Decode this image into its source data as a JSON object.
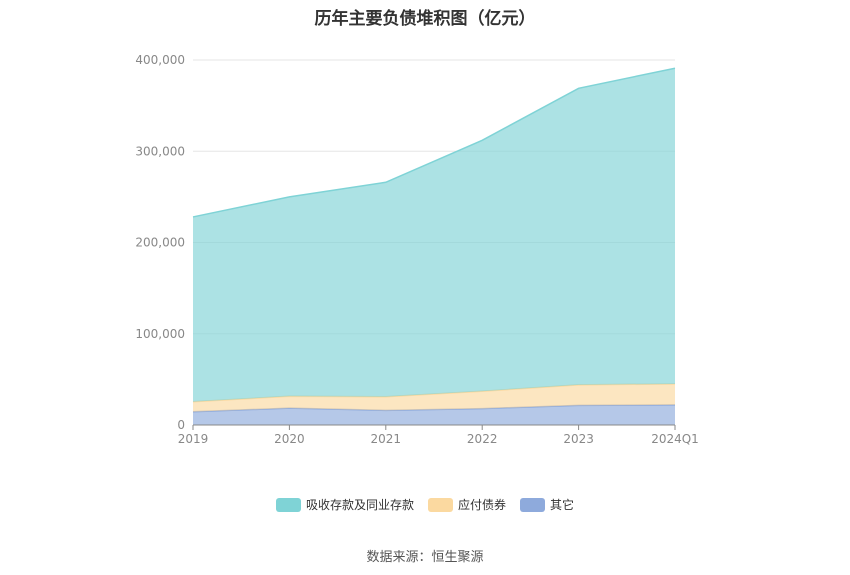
{
  "chart_data": {
    "type": "area",
    "stacked": true,
    "title": "历年主要负债堆积图（亿元）",
    "categories": [
      "2019",
      "2020",
      "2021",
      "2022",
      "2023",
      "2024Q1"
    ],
    "ylim": [
      0,
      400000
    ],
    "yticks": [
      "0",
      "100,000",
      "200,000",
      "300,000",
      "400,000"
    ],
    "grid": true,
    "legend_position": "bottom",
    "series": [
      {
        "name": "其它",
        "color": "#8eaadc",
        "values": [
          14500,
          18500,
          16000,
          18000,
          21500,
          22000
        ]
      },
      {
        "name": "应付债券",
        "color": "#fbd9a0",
        "values": [
          11000,
          13000,
          15000,
          19000,
          22500,
          23000
        ]
      },
      {
        "name": "吸收存款及同业存款",
        "color": "#7fd3d6",
        "values": [
          202500,
          218500,
          235000,
          275000,
          325000,
          346000
        ]
      }
    ],
    "legend_order": [
      2,
      1,
      0
    ]
  },
  "source": "数据来源：恒生聚源"
}
